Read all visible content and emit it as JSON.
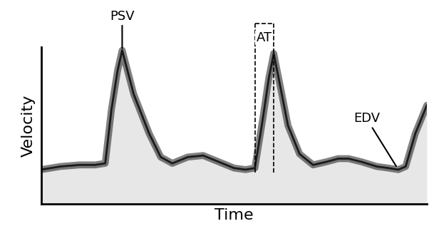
{
  "chart_data": {
    "type": "line",
    "x_label": "Time",
    "y_label": "Velocity",
    "x": [
      0,
      5,
      10,
      14,
      16.6,
      18.2,
      19.8,
      21,
      24,
      28,
      31,
      34,
      38,
      42,
      46,
      50,
      53,
      55.4,
      57.5,
      59,
      60.3,
      62,
      64,
      67,
      70.5,
      74,
      77,
      79.7,
      83,
      87,
      90,
      92.6,
      94.5,
      97,
      100
    ],
    "values": [
      22,
      24,
      25,
      25,
      26,
      60,
      85,
      98,
      70,
      45,
      30,
      26,
      30,
      31,
      27,
      23,
      22,
      23,
      55,
      80,
      96,
      75,
      50,
      32,
      25,
      27,
      29,
      29,
      27,
      24,
      23,
      22,
      24,
      45,
      63
    ],
    "color": "#1a1a1a",
    "xlim": [
      0,
      100
    ],
    "ylim": [
      0,
      100
    ],
    "xticks": [],
    "yticks": [],
    "tick_labels": false,
    "annotations": [
      {
        "text": "PSV",
        "x": 21,
        "y": 98
      },
      {
        "text": "AT",
        "x_start": 55.4,
        "x_end": 60.3
      },
      {
        "text": "EDV",
        "x": 92.6,
        "y": 22
      }
    ]
  }
}
